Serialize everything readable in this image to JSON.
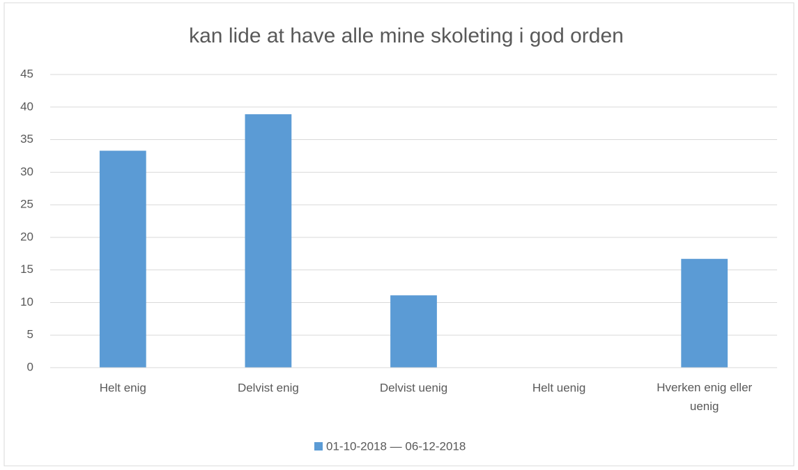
{
  "chart_data": {
    "type": "bar",
    "title": "kan lide at have alle mine skoleting i god orden",
    "categories": [
      "Helt enig",
      "Delvist enig",
      "Delvist uenig",
      "Helt uenig",
      "Hverken enig eller uenig"
    ],
    "series": [
      {
        "name": "01-10-2018 — 06-12-2018",
        "color": "#5b9bd5",
        "values": [
          33.3,
          38.9,
          11.1,
          0,
          16.7
        ]
      }
    ],
    "ylim": [
      0,
      45
    ],
    "yticks": [
      0,
      5,
      10,
      15,
      20,
      25,
      30,
      35,
      40,
      45
    ],
    "grid": true,
    "legend": "bottom"
  }
}
